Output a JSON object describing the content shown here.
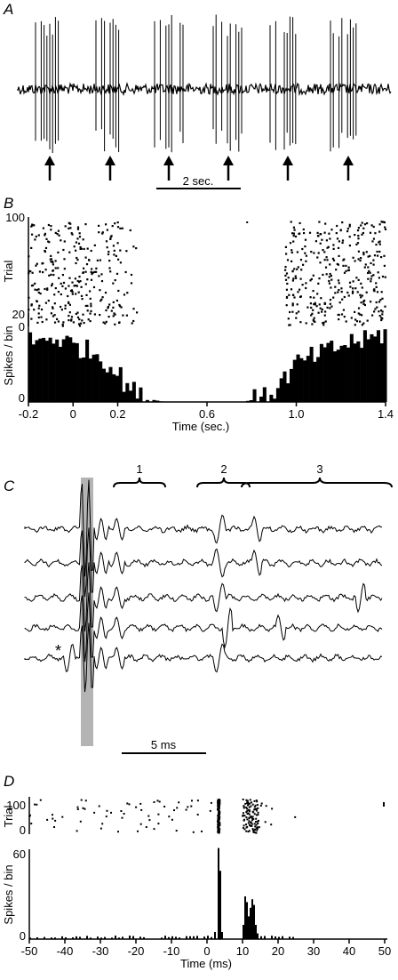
{
  "figure": {
    "panels": [
      "A",
      "B",
      "C",
      "D"
    ]
  },
  "panel_a": {
    "scale_label": "2 sec.",
    "arrow_count": 6
  },
  "panel_b": {
    "raster_ylabel": "Trial",
    "raster_yticks": [
      "100",
      "0"
    ],
    "hist_ylabel": "Spikes / bin",
    "hist_yticks": [
      "20",
      "0"
    ],
    "xlabel": "Time (sec.)",
    "xticks": [
      "-0.2",
      "0",
      "0.2",
      "0.6",
      "1.0",
      "1.4"
    ]
  },
  "panel_c": {
    "brace_labels": [
      "1",
      "2",
      "3"
    ],
    "marker": "*",
    "scale_label": "5 ms",
    "trace_count": 5
  },
  "panel_d": {
    "raster_ylabel": "Trial",
    "raster_yticks": [
      "100",
      "0"
    ],
    "hist_ylabel": "Spikes / bin",
    "hist_yticks": [
      "60",
      "0"
    ],
    "xlabel": "Time (ms)",
    "xticks": [
      "-50",
      "-40",
      "-30",
      "-20",
      "-10",
      "0",
      "10",
      "20",
      "30",
      "40",
      "50"
    ]
  },
  "chart_data": [
    {
      "type": "bar",
      "xlabel": "Time (sec.)",
      "ylabel": "Spikes / bin",
      "xlim": [
        -0.2,
        1.4
      ],
      "ylim": [
        0,
        20
      ],
      "bin_width": 0.015,
      "x": [
        -0.2,
        -0.15,
        -0.1,
        -0.05,
        0.0,
        0.05,
        0.1,
        0.15,
        0.2,
        0.25,
        0.3,
        0.35,
        0.4,
        0.45,
        0.75,
        0.8,
        0.85,
        0.9,
        0.95,
        1.0,
        1.05,
        1.1,
        1.15,
        1.2,
        1.25,
        1.3,
        1.35,
        1.4
      ],
      "values": [
        14,
        14,
        15,
        14,
        13,
        12,
        11,
        9,
        6,
        3,
        1,
        0.5,
        0,
        0,
        0,
        0.5,
        1,
        3,
        6,
        9,
        10,
        11,
        12,
        13,
        14,
        14,
        15,
        16
      ]
    },
    {
      "type": "bar",
      "xlabel": "Time (ms)",
      "ylabel": "Spikes / bin",
      "xlim": [
        -50,
        50
      ],
      "ylim": [
        0,
        60
      ],
      "bin_width": 0.5,
      "x": [
        -50,
        -40,
        -30,
        -20,
        -10,
        0,
        2,
        3,
        3.5,
        4,
        10,
        10.5,
        11,
        11.5,
        12,
        12.5,
        13,
        13.5,
        14,
        15,
        20,
        30,
        40,
        49
      ],
      "values": [
        1,
        1,
        1,
        1,
        1,
        0,
        5,
        64,
        48,
        5,
        10,
        30,
        26,
        16,
        22,
        28,
        24,
        10,
        4,
        2,
        1,
        0,
        0,
        0
      ]
    }
  ]
}
